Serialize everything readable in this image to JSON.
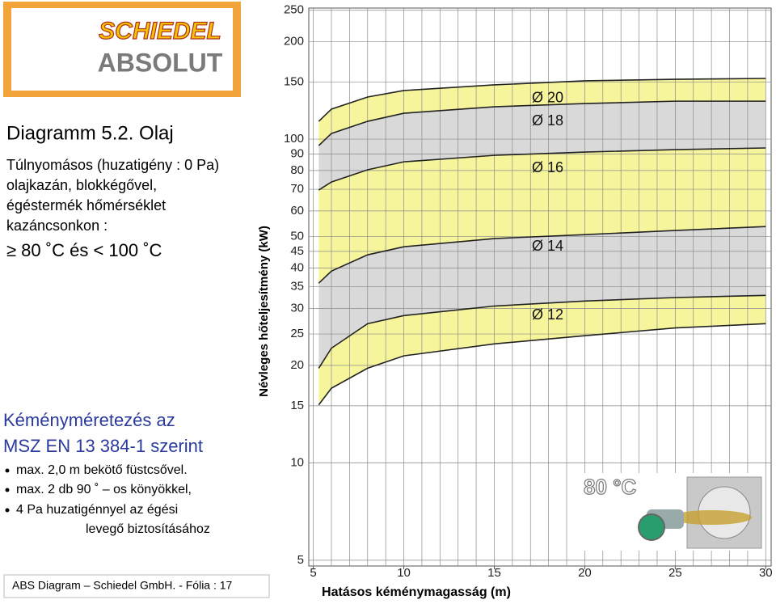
{
  "logo": {
    "brand": "SCHIEDEL",
    "product": "ABSOLUT"
  },
  "text": {
    "title": "Diagramm 5.2. Olaj",
    "lines": [
      "Túlnyomásos (huzatigény : 0 Pa)",
      "olajkazán, blokkégővel,",
      "égéstermék hőmérséklet",
      "kazáncsonkon :"
    ],
    "temperature": "≥ 80 ˚C és < 100 ˚C",
    "heading": [
      "Kéményméretezés az",
      "MSZ EN 13 384-1 szerint"
    ],
    "bullets": [
      "max. 2,0 m bekötő füstcsővel.",
      "max. 2 db 90 ˚ – os könyökkel,",
      "4 Pa huzatigénnyel az égési"
    ],
    "bullet_continuation": "levegő biztosításához",
    "footer": "ABS Diagram – Schiedel GmbH. - Fólia : 17"
  },
  "chart_data": {
    "type": "area",
    "y_label": "Névleges hőteljesítmény (kW)",
    "x_label": "Hatásos kéménymagasság (m)",
    "inset_label": "80 °C",
    "x": [
      5.3,
      6,
      8,
      10,
      15,
      20,
      25,
      30
    ],
    "series": [
      {
        "name": "Ø 12",
        "color": "#f7f59c",
        "lower": [
          15.1,
          17.0,
          19.6,
          21.4,
          23.3,
          24.7,
          26.1,
          26.9
        ],
        "values": [
          19.6,
          22.6,
          26.9,
          28.5,
          30.5,
          31.6,
          32.4,
          32.9
        ]
      },
      {
        "name": "Ø 14",
        "color": "#d9d9d9",
        "values": [
          35.9,
          39.1,
          43.9,
          46.5,
          49.3,
          50.7,
          52.2,
          53.7
        ]
      },
      {
        "name": "Ø 16",
        "color": "#f7f59c",
        "values": [
          69.6,
          73.7,
          80.4,
          85.1,
          89.1,
          91.2,
          92.8,
          93.9
        ]
      },
      {
        "name": "Ø 18",
        "color": "#d9d9d9",
        "values": [
          95.5,
          104.1,
          113.5,
          120.2,
          125.9,
          128.8,
          131.0,
          131.0
        ]
      },
      {
        "name": "Ø 20",
        "color": "#f7f59c",
        "values": [
          113.5,
          123.8,
          134.9,
          141.3,
          147.1,
          151.4,
          153.1,
          154.0
        ]
      }
    ],
    "xlim": [
      4.75,
      30.3
    ],
    "ylim": [
      4.8,
      254
    ],
    "xticks": [
      5,
      10,
      15,
      20,
      25,
      30
    ],
    "yticks": [
      5,
      10,
      15,
      20,
      25,
      30,
      35,
      40,
      45,
      50,
      60,
      70,
      80,
      90,
      100,
      150,
      200,
      250
    ],
    "y_scale": "log",
    "grid": true
  }
}
